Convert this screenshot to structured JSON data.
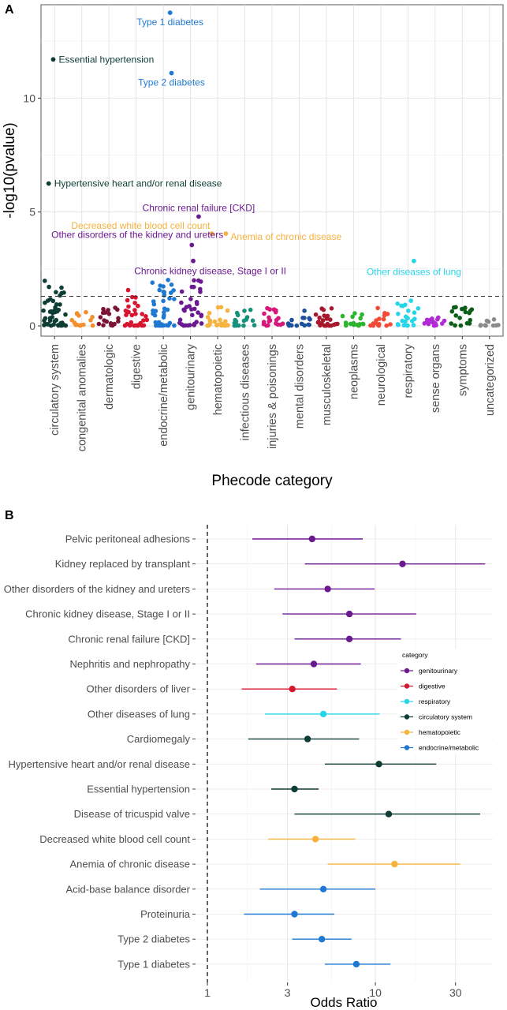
{
  "chart_data": [
    {
      "panel": "A",
      "type": "scatter",
      "xlabel": "Phecode category",
      "ylabel": "-log10(pvalue)",
      "ylim": [
        0,
        14
      ],
      "yticks": [
        0,
        5,
        10
      ],
      "threshold": 1.3,
      "grid": true,
      "categories": [
        {
          "name": "circulatory system",
          "color": "#0d3d34"
        },
        {
          "name": "congenital anomalies",
          "color": "#f28e2b"
        },
        {
          "name": "dermatologic",
          "color": "#7a1234"
        },
        {
          "name": "digestive",
          "color": "#d7152f"
        },
        {
          "name": "endocrine/metabolic",
          "color": "#1f78d1"
        },
        {
          "name": "genitourinary",
          "color": "#6b1991"
        },
        {
          "name": "hematopoietic",
          "color": "#f6b23e"
        },
        {
          "name": "infectious diseases",
          "color": "#16917a"
        },
        {
          "name": "injuries & poisonings",
          "color": "#d6187a"
        },
        {
          "name": "mental disorders",
          "color": "#1d4f9c"
        },
        {
          "name": "musculoskeletal",
          "color": "#a8182c"
        },
        {
          "name": "neoplasms",
          "color": "#2ab52e"
        },
        {
          "name": "neurological",
          "color": "#f24a36"
        },
        {
          "name": "respiratory",
          "color": "#27d5e8"
        },
        {
          "name": "sense organs",
          "color": "#b12ad6"
        },
        {
          "name": "symptoms",
          "color": "#0b5e18"
        },
        {
          "name": "uncategorized",
          "color": "#8a8a8a"
        }
      ],
      "labeled_points": [
        {
          "label": "Type 1 diabetes",
          "category": "endocrine/metabolic",
          "y": 13.75
        },
        {
          "label": "Essential hypertension",
          "category": "circulatory system",
          "y": 11.7
        },
        {
          "label": "Type 2 diabetes",
          "category": "endocrine/metabolic",
          "y": 11.1
        },
        {
          "label": "Hypertensive heart and/or renal disease",
          "category": "circulatory system",
          "y": 6.25
        },
        {
          "label": "Chronic renal failure [CKD]",
          "category": "genitourinary",
          "y": 4.8
        },
        {
          "label": "Decreased white blood cell count",
          "category": "hematopoietic",
          "y": 4.05
        },
        {
          "label": "Anemia of chronic disease",
          "category": "hematopoietic",
          "y": 4.05
        },
        {
          "label": "Other disorders of the kidney and ureters",
          "category": "genitourinary",
          "y": 3.55
        },
        {
          "label": "Chronic kidney disease, Stage I or II",
          "category": "genitourinary",
          "y": 2.85
        },
        {
          "label": "Other diseases of lung",
          "category": "respiratory",
          "y": 2.85
        }
      ]
    },
    {
      "panel": "B",
      "type": "scatter",
      "xlabel": "Odds Ratio",
      "ylabel": "",
      "xscale": "log",
      "xlim": [
        0.85,
        50
      ],
      "xticks": [
        1,
        3,
        10,
        30
      ],
      "reference_line": 1,
      "legend_title": "category",
      "legend_position": "right",
      "legend": [
        {
          "name": "genitourinary",
          "color": "#6b1991"
        },
        {
          "name": "digestive",
          "color": "#d7152f"
        },
        {
          "name": "respiratory",
          "color": "#27d5e8"
        },
        {
          "name": "circulatory system",
          "color": "#0d3d34"
        },
        {
          "name": "hematopoietic",
          "color": "#f6b23e"
        },
        {
          "name": "endocrine/metabolic",
          "color": "#1f78d1"
        }
      ],
      "rows": [
        {
          "phenotype": "Pelvic peritoneal adhesions",
          "category": "genitourinary",
          "or": 4.2,
          "lo": 1.85,
          "hi": 8.4
        },
        {
          "phenotype": "Kidney replaced by transplant",
          "category": "genitourinary",
          "or": 14.5,
          "lo": 3.8,
          "hi": 45.0
        },
        {
          "phenotype": "Other disorders of the kidney and ureters",
          "category": "genitourinary",
          "or": 5.2,
          "lo": 2.5,
          "hi": 9.9
        },
        {
          "phenotype": "Chronic kidney disease, Stage I or II",
          "category": "genitourinary",
          "or": 7.0,
          "lo": 2.8,
          "hi": 17.5
        },
        {
          "phenotype": "Chronic renal failure [CKD]",
          "category": "genitourinary",
          "or": 7.0,
          "lo": 3.3,
          "hi": 14.2
        },
        {
          "phenotype": "Nephritis and nephropathy",
          "category": "genitourinary",
          "or": 4.3,
          "lo": 1.95,
          "hi": 8.2
        },
        {
          "phenotype": "Other disorders of liver",
          "category": "digestive",
          "or": 3.2,
          "lo": 1.6,
          "hi": 5.9
        },
        {
          "phenotype": "Other diseases of lung",
          "category": "respiratory",
          "or": 4.9,
          "lo": 2.2,
          "hi": 10.6
        },
        {
          "phenotype": "Cardiomegaly",
          "category": "circulatory system",
          "or": 3.95,
          "lo": 1.75,
          "hi": 8.0
        },
        {
          "phenotype": "Hypertensive heart and/or renal disease",
          "category": "circulatory system",
          "or": 10.5,
          "lo": 5.0,
          "hi": 23.0
        },
        {
          "phenotype": "Essential hypertension",
          "category": "circulatory system",
          "or": 3.3,
          "lo": 2.4,
          "hi": 4.6
        },
        {
          "phenotype": "Disease of tricuspid valve",
          "category": "circulatory system",
          "or": 12.0,
          "lo": 3.3,
          "hi": 42.0
        },
        {
          "phenotype": "Decreased white blood cell count",
          "category": "hematopoietic",
          "or": 4.4,
          "lo": 2.3,
          "hi": 7.6
        },
        {
          "phenotype": "Anemia of chronic disease",
          "category": "hematopoietic",
          "or": 13.0,
          "lo": 5.2,
          "hi": 32.0
        },
        {
          "phenotype": "Acid-base balance disorder",
          "category": "endocrine/metabolic",
          "or": 4.9,
          "lo": 2.05,
          "hi": 10.0
        },
        {
          "phenotype": "Proteinuria",
          "category": "endocrine/metabolic",
          "or": 3.3,
          "lo": 1.65,
          "hi": 5.7
        },
        {
          "phenotype": "Type 2 diabetes",
          "category": "endocrine/metabolic",
          "or": 4.8,
          "lo": 3.2,
          "hi": 7.2
        },
        {
          "phenotype": "Type 1 diabetes",
          "category": "endocrine/metabolic",
          "or": 7.7,
          "lo": 5.0,
          "hi": 12.3
        }
      ]
    }
  ]
}
